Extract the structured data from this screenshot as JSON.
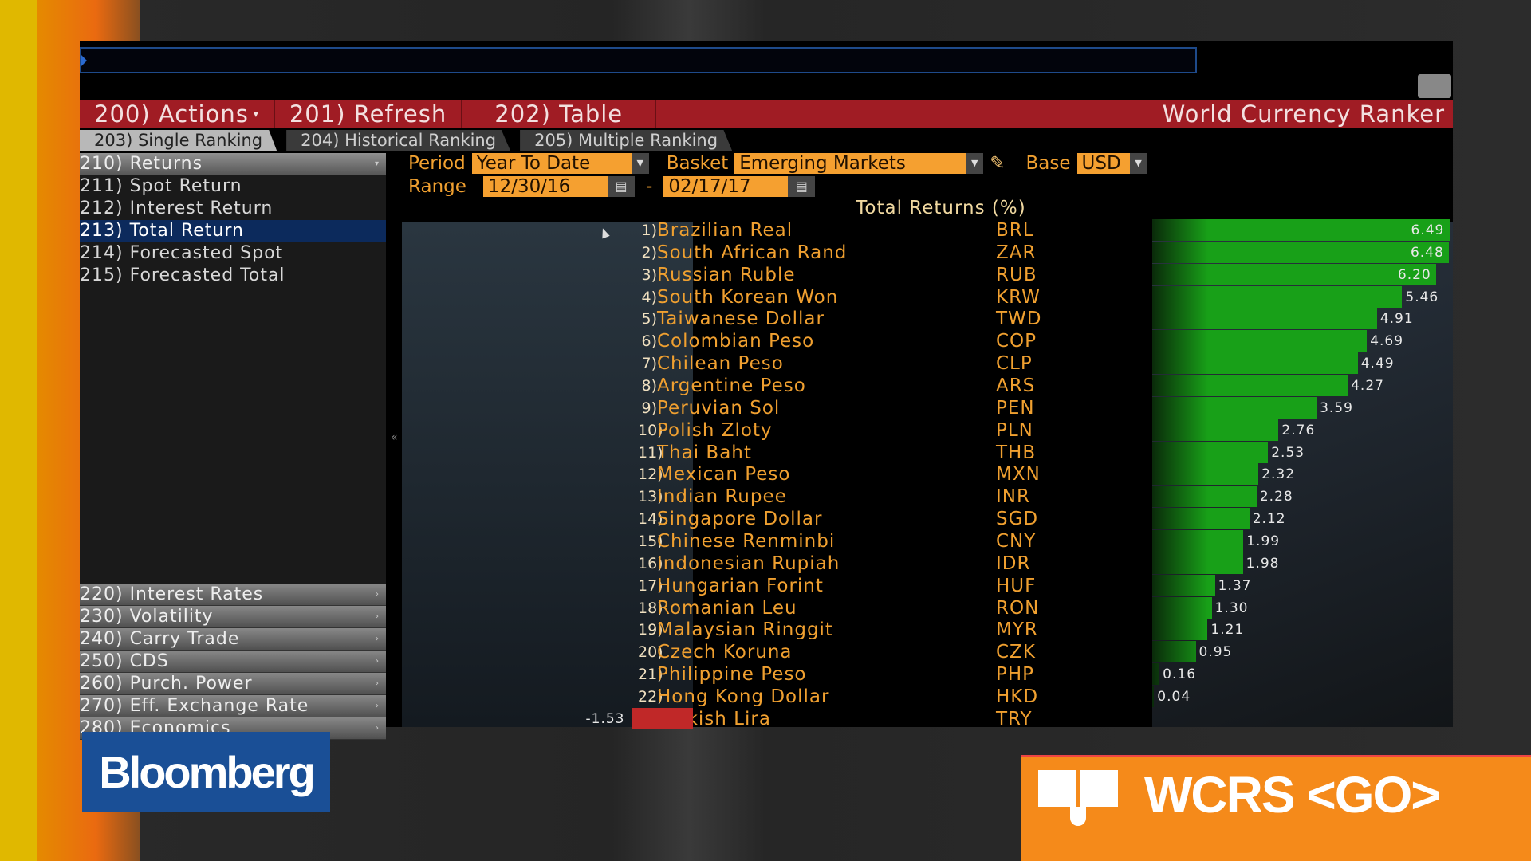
{
  "toolbar": {
    "actions": "200) Actions",
    "refresh": "201) Refresh",
    "table": "202) Table",
    "title": "World Currency Ranker"
  },
  "tabs": [
    "203) Single Ranking",
    "204) Historical Ranking",
    "205) Multiple Ranking"
  ],
  "sidebar": {
    "top": [
      {
        "label": "210) Returns",
        "type": "header"
      },
      {
        "label": "211) Spot Return"
      },
      {
        "label": "212) Interest Return"
      },
      {
        "label": "213) Total Return",
        "selected": true
      },
      {
        "label": "214) Forecasted Spot"
      },
      {
        "label": "215) Forecasted Total"
      }
    ],
    "bottom": [
      "220) Interest Rates",
      "230) Volatility",
      "240) Carry Trade",
      "250) CDS",
      "260) Purch. Power",
      "270) Eff. Exchange Rate",
      "280) Economics"
    ]
  },
  "controls": {
    "period_label": "Period",
    "period_value": "Year To Date",
    "basket_label": "Basket",
    "basket_value": "Emerging Markets",
    "base_label": "Base",
    "base_value": "USD",
    "range_label": "Range",
    "range_start": "12/30/16",
    "range_sep": "-",
    "range_end": "02/17/17"
  },
  "chart_data": {
    "type": "bar",
    "title": "Total Returns (%)",
    "orientation": "horizontal",
    "positive_color": "#18a018",
    "negative_color": "#c02828",
    "rows": [
      {
        "rank": "1)",
        "name": "Brazilian Real",
        "code": "BRL",
        "value": 6.49
      },
      {
        "rank": "2)",
        "name": "South African Rand",
        "code": "ZAR",
        "value": 6.48
      },
      {
        "rank": "3)",
        "name": "Russian Ruble",
        "code": "RUB",
        "value": 6.2
      },
      {
        "rank": "4)",
        "name": "South Korean Won",
        "code": "KRW",
        "value": 5.46
      },
      {
        "rank": "5)",
        "name": "Taiwanese Dollar",
        "code": "TWD",
        "value": 4.91
      },
      {
        "rank": "6)",
        "name": "Colombian Peso",
        "code": "COP",
        "value": 4.69
      },
      {
        "rank": "7)",
        "name": "Chilean Peso",
        "code": "CLP",
        "value": 4.49
      },
      {
        "rank": "8)",
        "name": "Argentine Peso",
        "code": "ARS",
        "value": 4.27
      },
      {
        "rank": "9)",
        "name": "Peruvian Sol",
        "code": "PEN",
        "value": 3.59
      },
      {
        "rank": "10)",
        "name": "Polish Zloty",
        "code": "PLN",
        "value": 2.76
      },
      {
        "rank": "11)",
        "name": "Thai Baht",
        "code": "THB",
        "value": 2.53
      },
      {
        "rank": "12)",
        "name": "Mexican Peso",
        "code": "MXN",
        "value": 2.32
      },
      {
        "rank": "13)",
        "name": "Indian Rupee",
        "code": "INR",
        "value": 2.28
      },
      {
        "rank": "14)",
        "name": "Singapore Dollar",
        "code": "SGD",
        "value": 2.12
      },
      {
        "rank": "15)",
        "name": "Chinese Renminbi",
        "code": "CNY",
        "value": 1.99
      },
      {
        "rank": "16)",
        "name": "Indonesian Rupiah",
        "code": "IDR",
        "value": 1.98
      },
      {
        "rank": "17)",
        "name": "Hungarian Forint",
        "code": "HUF",
        "value": 1.37
      },
      {
        "rank": "18)",
        "name": "Romanian Leu",
        "code": "RON",
        "value": 1.3
      },
      {
        "rank": "19)",
        "name": "Malaysian Ringgit",
        "code": "MYR",
        "value": 1.21
      },
      {
        "rank": "20)",
        "name": "Czech Koruna",
        "code": "CZK",
        "value": 0.95
      },
      {
        "rank": "21)",
        "name": "Philippine Peso",
        "code": "PHP",
        "value": 0.16
      },
      {
        "rank": "22)",
        "name": "Hong Kong Dollar",
        "code": "HKD",
        "value": 0.04
      },
      {
        "rank": "23)",
        "name": "Turkish Lira",
        "code": "TRY",
        "value": -1.53
      }
    ]
  },
  "branding": {
    "logo": "Bloomberg",
    "command": "WCRS <GO>"
  }
}
